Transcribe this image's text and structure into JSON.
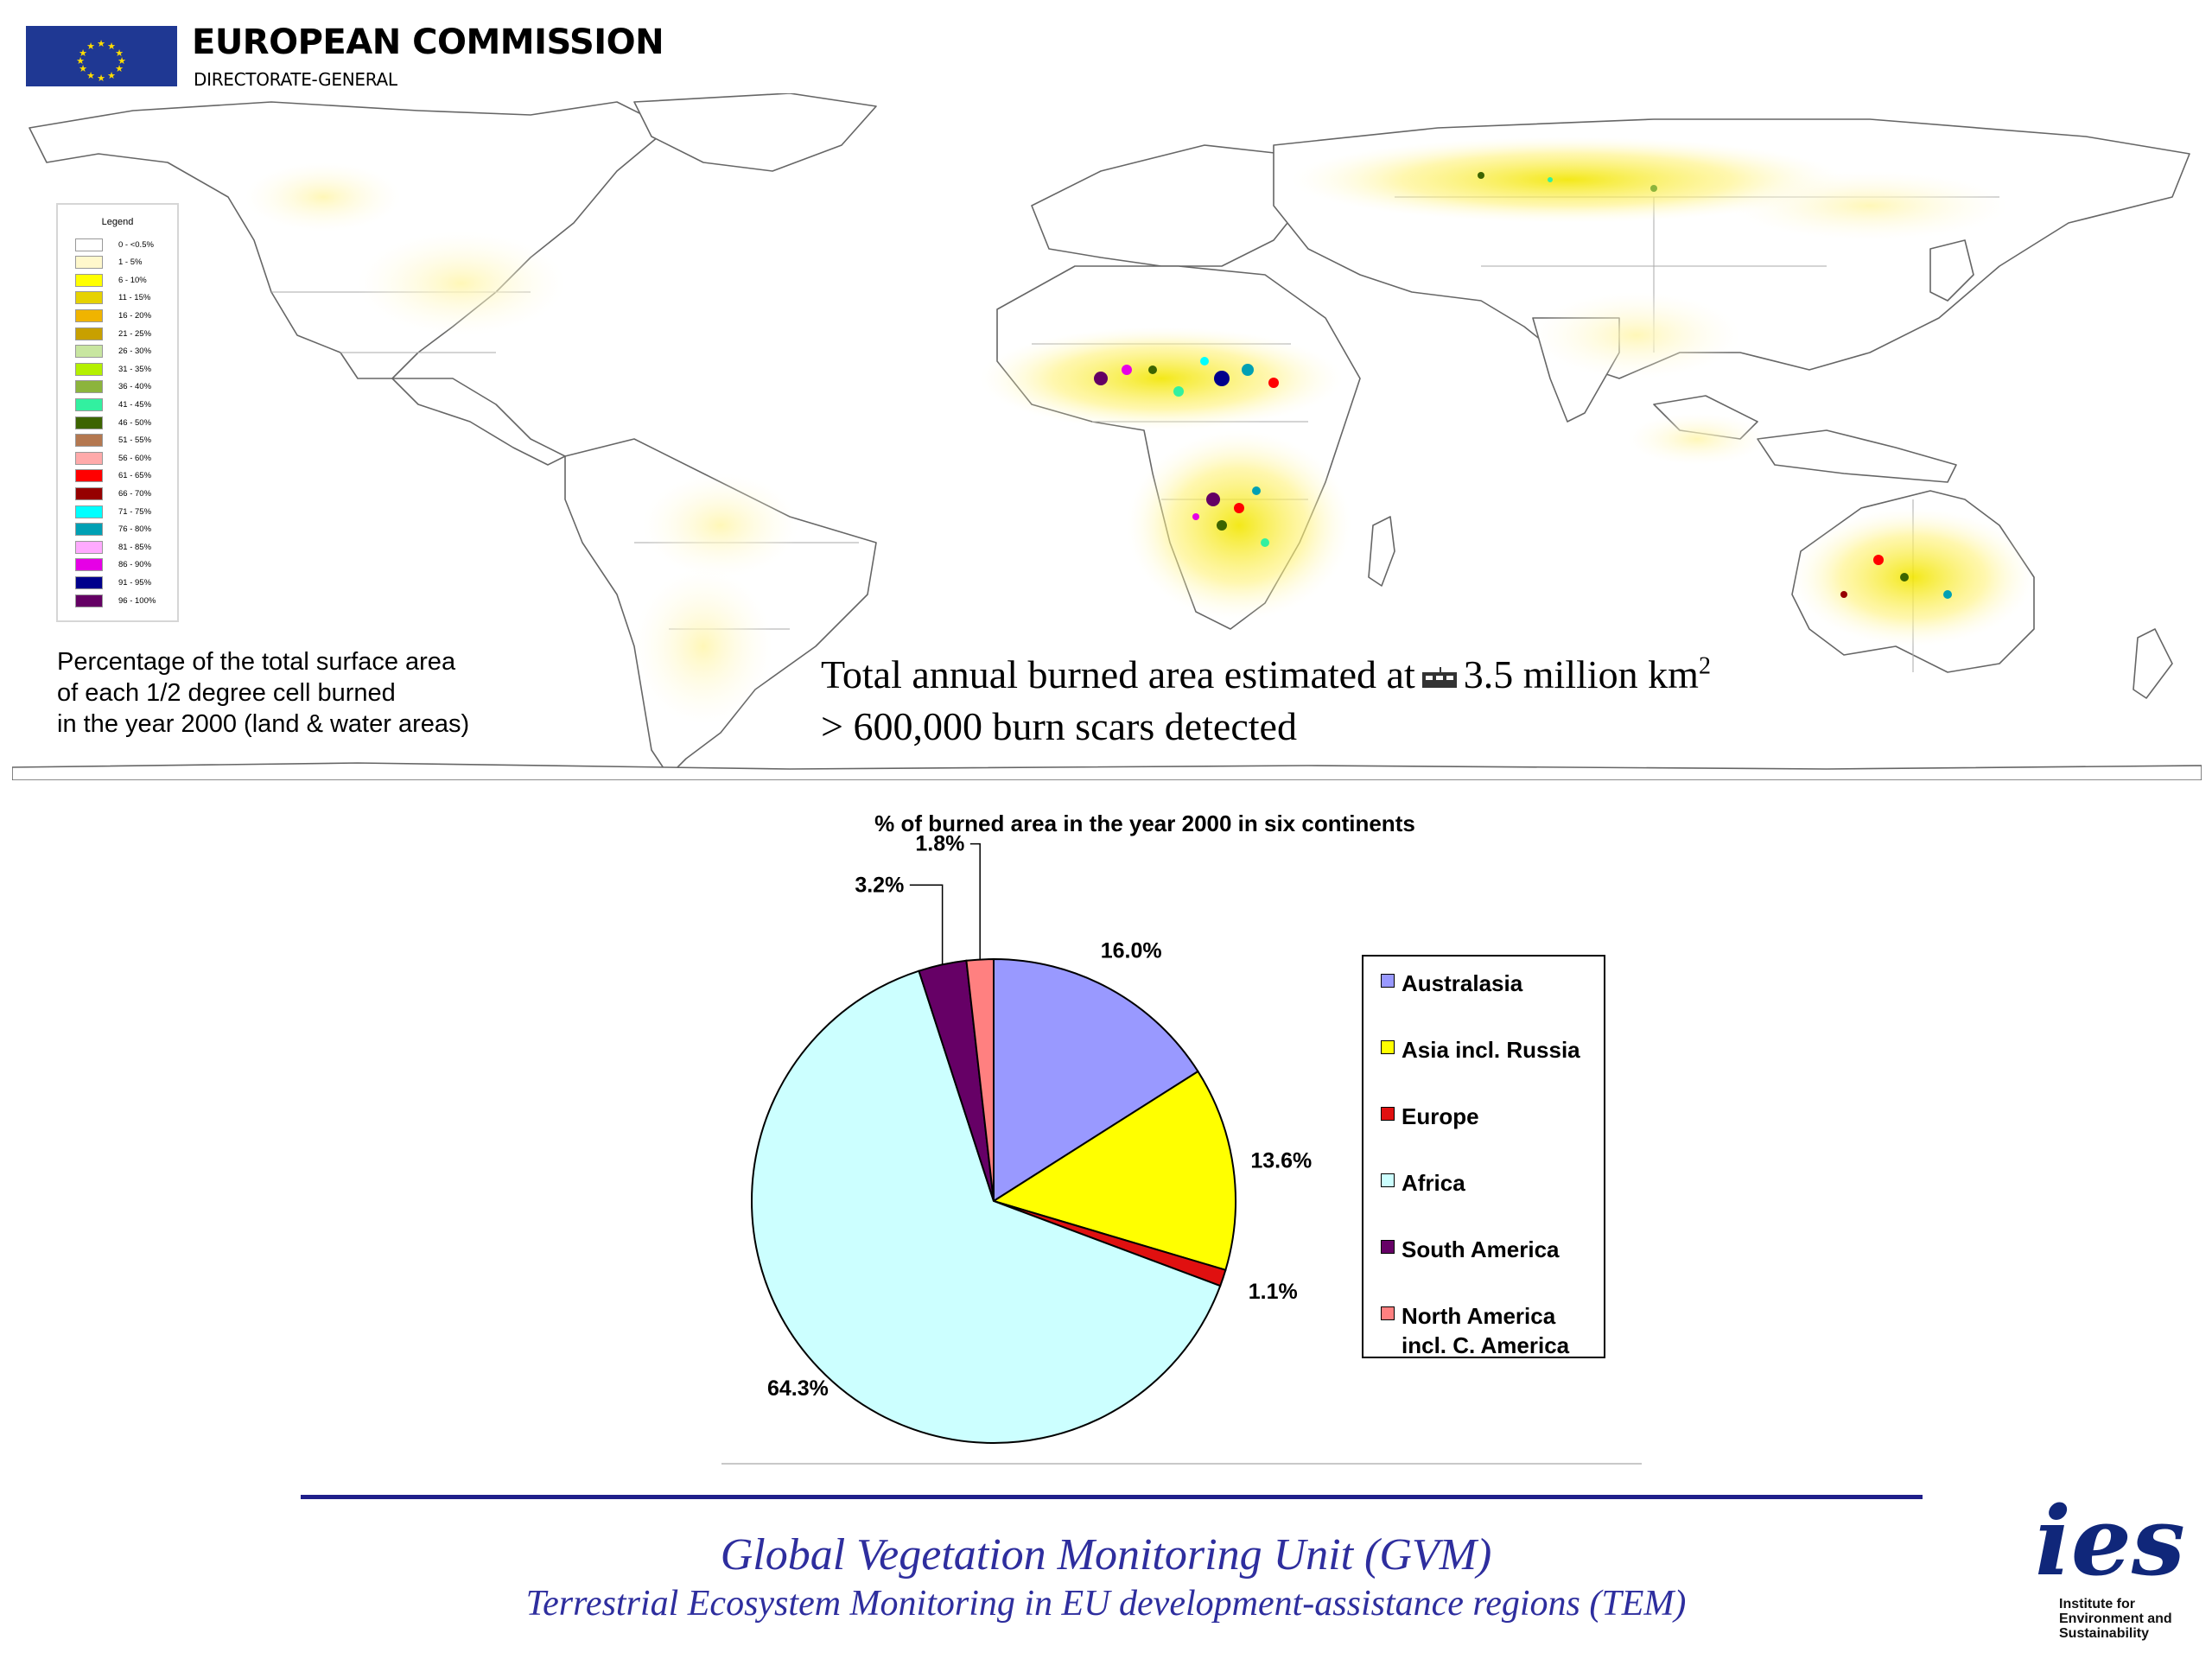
{
  "header": {
    "org": "EUROPEAN COMMISSION",
    "sub": "DIRECTORATE-GENERAL"
  },
  "map": {
    "legend_title": "Legend",
    "legend": [
      {
        "label": "0 - <0.5%",
        "color": "#ffffff"
      },
      {
        "label": "1 - 5%",
        "color": "#fff8cc"
      },
      {
        "label": "6 - 10%",
        "color": "#ffff00"
      },
      {
        "label": "11 - 15%",
        "color": "#e6d200"
      },
      {
        "label": "16 - 20%",
        "color": "#f0b400"
      },
      {
        "label": "21 - 25%",
        "color": "#c8a000"
      },
      {
        "label": "26 - 30%",
        "color": "#c8e6a0"
      },
      {
        "label": "31 - 35%",
        "color": "#b4f000"
      },
      {
        "label": "36 - 40%",
        "color": "#8cb43c"
      },
      {
        "label": "41 - 45%",
        "color": "#32f0a0"
      },
      {
        "label": "46 - 50%",
        "color": "#3c6400"
      },
      {
        "label": "51 - 55%",
        "color": "#b47850"
      },
      {
        "label": "56 - 60%",
        "color": "#ffaaaa"
      },
      {
        "label": "61 - 65%",
        "color": "#ff0000"
      },
      {
        "label": "66 - 70%",
        "color": "#960000"
      },
      {
        "label": "71 - 75%",
        "color": "#00ffff"
      },
      {
        "label": "76 - 80%",
        "color": "#00a0b4"
      },
      {
        "label": "81 - 85%",
        "color": "#ffaaff"
      },
      {
        "label": "86 - 90%",
        "color": "#e600e6"
      },
      {
        "label": "91 - 95%",
        "color": "#00008c"
      },
      {
        "label": "96 - 100%",
        "color": "#640064"
      }
    ],
    "caption": [
      "Percentage of the total surface area",
      "of each 1/2 degree cell burned",
      "in the year 2000 (land & water areas)"
    ],
    "stat1_text": "Total annual burned area estimated at",
    "stat1_value": "3.5 million km",
    "stat1_sup": "2",
    "stat2": "> 600,000 burn scars detected"
  },
  "chart_data": {
    "type": "pie",
    "title": "% of burned area in the year 2000 in six continents",
    "legend_position": "right",
    "categories": [
      "Australasia",
      "Asia incl. Russia",
      "Europe",
      "Africa",
      "South America",
      "North America incl. C. America"
    ],
    "values": [
      16.0,
      13.6,
      1.1,
      64.3,
      3.2,
      1.8
    ],
    "value_labels": [
      "16.0%",
      "13.6%",
      "1.1%",
      "64.3%",
      "3.2%",
      "1.8%"
    ],
    "colors": [
      "#9999ff",
      "#ffff00",
      "#e01010",
      "#ccffff",
      "#660066",
      "#ff8080"
    ],
    "legend_lines": [
      [
        "Australasia"
      ],
      [
        "Asia incl. Russia"
      ],
      [
        "Europe"
      ],
      [
        "Africa"
      ],
      [
        "South America"
      ],
      [
        "North America",
        "incl. C. America"
      ]
    ]
  },
  "footer": {
    "line1": "Global Vegetation Monitoring Unit (GVM)",
    "line2": "Terrestrial Ecosystem Monitoring in EU development-assistance regions (TEM)",
    "ies_mark": "ies",
    "ies_text": [
      "Institute for",
      "Environment and",
      "Sustainability"
    ]
  }
}
